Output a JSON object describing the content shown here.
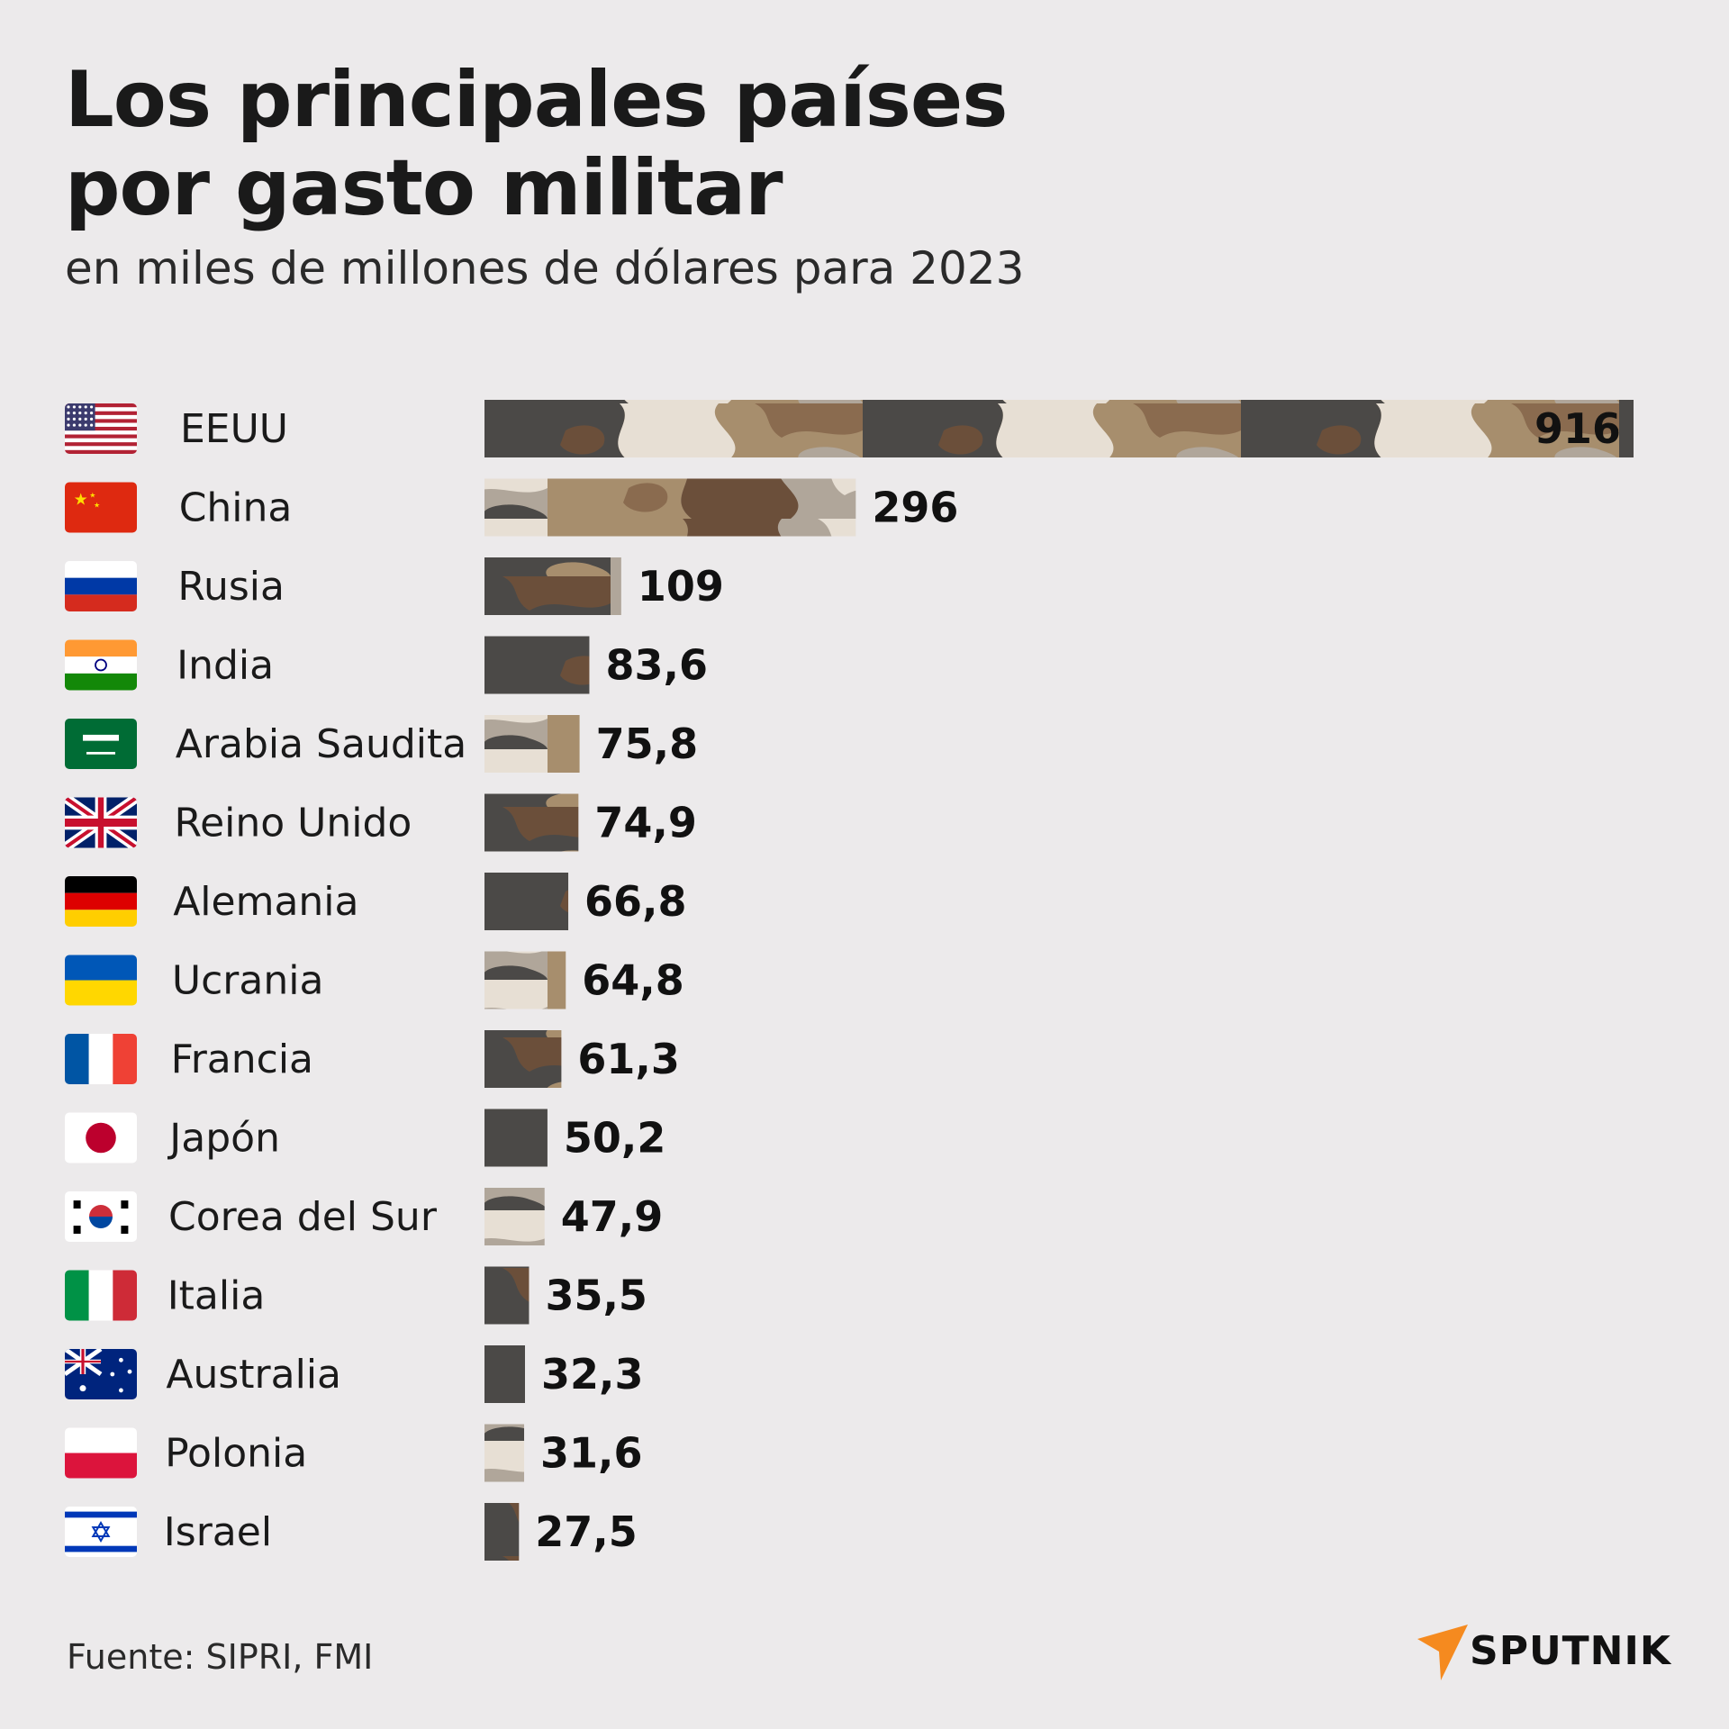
{
  "header": {
    "title_line1": "Los principales países",
    "title_line2": "por gasto militar",
    "subtitle": "en miles de millones de dólares para 2023"
  },
  "footer": {
    "source": "Fuente: SIPRI, FMI",
    "logo_text": "SPUTNIK",
    "logo_color": "#F58A1F"
  },
  "colors": {
    "background": "#ECEAEB",
    "camo": [
      "#4B4947",
      "#8A6B4F",
      "#A78E6D",
      "#E7DFD4",
      "#B0A69A",
      "#6B4F3A"
    ]
  },
  "chart_data": {
    "type": "bar",
    "orientation": "horizontal",
    "title": "Los principales países por gasto militar",
    "subtitle": "en miles de millones de dólares para 2023",
    "categories": [
      "EEUU",
      "China",
      "Rusia",
      "India",
      "Arabia Saudita",
      "Reino Unido",
      "Alemania",
      "Ucrania",
      "Francia",
      "Japón",
      "Corea del Sur",
      "Italia",
      "Australia",
      "Polonia",
      "Israel"
    ],
    "values": [
      916,
      296,
      109,
      83.6,
      75.8,
      74.9,
      66.8,
      64.8,
      61.3,
      50.2,
      47.9,
      35.5,
      32.3,
      31.6,
      27.5
    ],
    "value_labels": [
      "916",
      "296",
      "109",
      "83,6",
      "75,8",
      "74,9",
      "66,8",
      "64,8",
      "61,3",
      "50,2",
      "47,9",
      "35,5",
      "32,3",
      "31,6",
      "27,5"
    ],
    "flags": [
      "us",
      "cn",
      "ru",
      "in",
      "sa",
      "gb",
      "de",
      "ua",
      "fr",
      "jp",
      "kr",
      "it",
      "au",
      "pl",
      "il"
    ],
    "xlim": [
      0,
      916
    ],
    "grid": false,
    "legend": "none"
  }
}
